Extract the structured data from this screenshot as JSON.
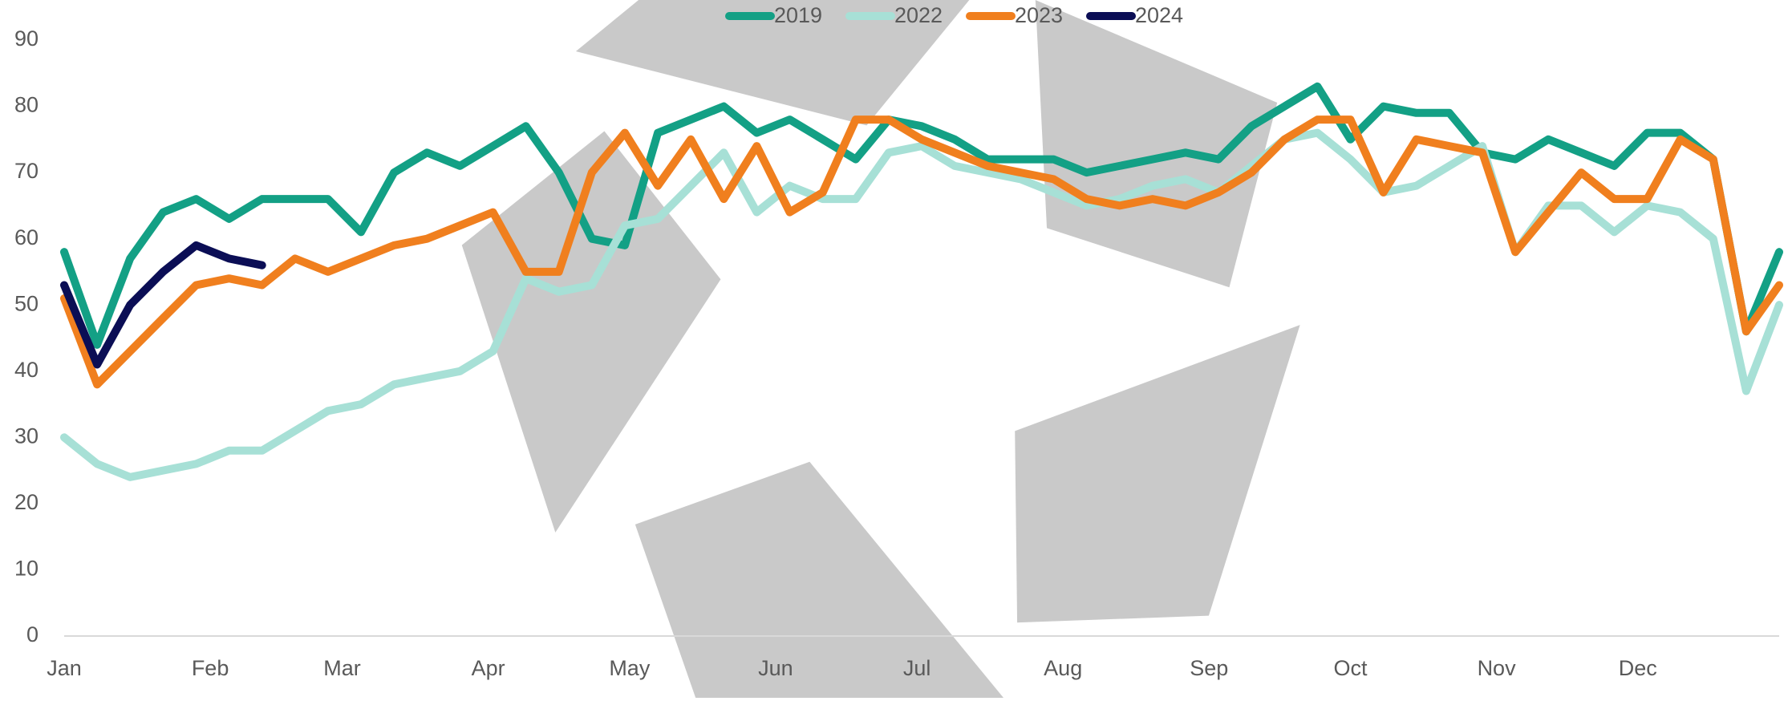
{
  "chart_data": {
    "type": "line",
    "x": [
      1,
      8,
      15,
      22,
      29,
      36,
      43,
      50,
      57,
      64,
      71,
      78,
      85,
      92,
      99,
      106,
      113,
      120,
      127,
      134,
      141,
      148,
      155,
      162,
      169,
      176,
      183,
      190,
      197,
      204,
      211,
      218,
      225,
      232,
      239,
      246,
      253,
      260,
      267,
      274,
      281,
      288,
      295,
      302,
      309,
      316,
      323,
      330,
      337,
      344,
      351,
      358,
      365
    ],
    "xlim": [
      1,
      365
    ],
    "xticks": [
      {
        "value": 1,
        "label": "Jan"
      },
      {
        "value": 32,
        "label": "Feb"
      },
      {
        "value": 60,
        "label": "Mar"
      },
      {
        "value": 91,
        "label": "Apr"
      },
      {
        "value": 121,
        "label": "May"
      },
      {
        "value": 152,
        "label": "Jun"
      },
      {
        "value": 182,
        "label": "Jul"
      },
      {
        "value": 213,
        "label": "Aug"
      },
      {
        "value": 244,
        "label": "Sep"
      },
      {
        "value": 274,
        "label": "Oct"
      },
      {
        "value": 305,
        "label": "Nov"
      },
      {
        "value": 335,
        "label": "Dec"
      }
    ],
    "ylim": [
      0,
      90
    ],
    "yticks": [
      0,
      10,
      20,
      30,
      40,
      50,
      60,
      70,
      80,
      90
    ],
    "legend": "top",
    "series": [
      {
        "name": "2019",
        "color": "#13a085",
        "values": [
          58,
          44,
          57,
          64,
          66,
          63,
          66,
          66,
          66,
          61,
          70,
          73,
          71,
          74,
          77,
          70,
          60,
          59,
          76,
          78,
          80,
          76,
          78,
          75,
          72,
          78,
          77,
          75,
          72,
          72,
          72,
          70,
          71,
          72,
          73,
          72,
          77,
          80,
          83,
          75,
          80,
          79,
          79,
          73,
          72,
          75,
          73,
          71,
          76,
          76,
          72,
          46,
          58
        ]
      },
      {
        "name": "2022",
        "color": "#a7e0d6",
        "values": [
          30,
          26,
          24,
          25,
          26,
          28,
          28,
          31,
          34,
          35,
          38,
          39,
          40,
          43,
          54,
          52,
          53,
          62,
          63,
          68,
          73,
          64,
          68,
          66,
          66,
          73,
          74,
          71,
          70,
          69,
          67,
          65,
          66,
          68,
          69,
          67,
          71,
          75,
          76,
          72,
          67,
          68,
          71,
          74,
          58,
          65,
          65,
          61,
          65,
          64,
          60,
          37,
          50
        ]
      },
      {
        "name": "2023",
        "color": "#f07f1e",
        "values": [
          51,
          38,
          43,
          48,
          53,
          54,
          53,
          57,
          55,
          57,
          59,
          60,
          62,
          64,
          55,
          55,
          70,
          76,
          68,
          75,
          66,
          74,
          64,
          67,
          78,
          78,
          75,
          73,
          71,
          70,
          69,
          66,
          65,
          66,
          65,
          67,
          70,
          75,
          78,
          78,
          67,
          75,
          74,
          73,
          58,
          64,
          70,
          66,
          66,
          75,
          72,
          46,
          53
        ]
      },
      {
        "name": "2024",
        "color": "#0b0e55",
        "values": [
          53,
          41,
          50,
          55,
          59,
          57,
          56,
          null,
          null,
          null,
          null,
          null,
          null,
          null,
          null,
          null,
          null,
          null,
          null,
          null,
          null,
          null,
          null,
          null,
          null,
          null,
          null,
          null,
          null,
          null,
          null,
          null,
          null,
          null,
          null,
          null,
          null,
          null,
          null,
          null,
          null,
          null,
          null,
          null,
          null,
          null,
          null,
          null,
          null,
          null,
          null,
          null,
          null
        ]
      }
    ]
  }
}
